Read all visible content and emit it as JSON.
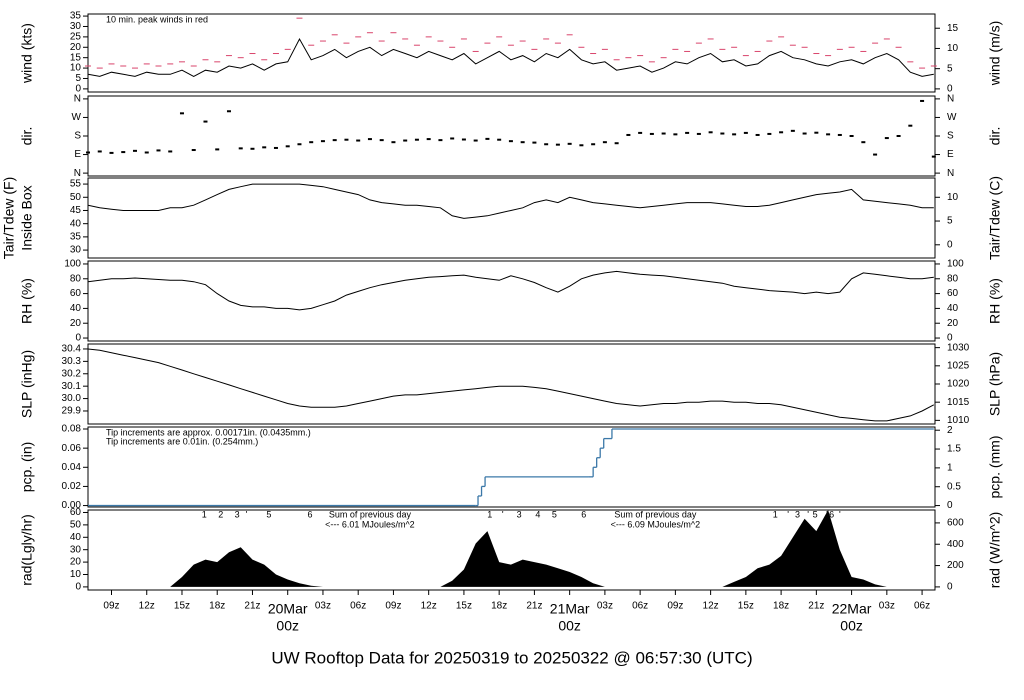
{
  "time_axis": {
    "xlim": [
      0,
      72.1
    ],
    "x": [
      0,
      1,
      2,
      3,
      4,
      5,
      6,
      7,
      8,
      9,
      10,
      11,
      12,
      13,
      14,
      15,
      16,
      17,
      18,
      19,
      20,
      21,
      22,
      23,
      24,
      25,
      26,
      27,
      28,
      29,
      30,
      31,
      32,
      33,
      34,
      35,
      36,
      37,
      38,
      39,
      40,
      41,
      42,
      43,
      44,
      45,
      46,
      47,
      48,
      49,
      50,
      51,
      52,
      53,
      54,
      55,
      56,
      57,
      58,
      59,
      60,
      61,
      62,
      63,
      64,
      65,
      66,
      67,
      68,
      69,
      70,
      71,
      72
    ],
    "xticks": [
      {
        "value": 2,
        "label": "09z"
      },
      {
        "value": 5,
        "label": "12z"
      },
      {
        "value": 8,
        "label": "15z"
      },
      {
        "value": 11,
        "label": "18z"
      },
      {
        "value": 14,
        "label": "21z"
      },
      {
        "value": 20,
        "label": "03z"
      },
      {
        "value": 23,
        "label": "06z"
      },
      {
        "value": 26,
        "label": "09z"
      },
      {
        "value": 29,
        "label": "12z"
      },
      {
        "value": 32,
        "label": "15z"
      },
      {
        "value": 35,
        "label": "18z"
      },
      {
        "value": 38,
        "label": "21z"
      },
      {
        "value": 44,
        "label": "03z"
      },
      {
        "value": 47,
        "label": "06z"
      },
      {
        "value": 50,
        "label": "09z"
      },
      {
        "value": 53,
        "label": "12z"
      },
      {
        "value": 56,
        "label": "15z"
      },
      {
        "value": 59,
        "label": "18z"
      },
      {
        "value": 62,
        "label": "21z"
      },
      {
        "value": 68,
        "label": "03z"
      },
      {
        "value": 71,
        "label": "06z"
      }
    ],
    "date_ticks": [
      {
        "value": 17,
        "label": "20Mar",
        "hour": "00z"
      },
      {
        "value": 41,
        "label": "21Mar",
        "hour": "00z"
      },
      {
        "value": 65,
        "label": "22Mar",
        "hour": "00z"
      }
    ],
    "date_color": "#d9446b",
    "title": "UW Rooftop Data for 20250319  to  20250322 @ 06:57:30  (UTC)",
    "title_color": "#2c8fd6"
  },
  "chart_data": [
    {
      "type": "line",
      "ylabel": "wind (kts)",
      "y2label": "wind (m/s)",
      "ylim": [
        -1.5,
        36
      ],
      "yticks": [
        0,
        5,
        10,
        15,
        20,
        25,
        30,
        35
      ],
      "y2lim": [
        -0.77,
        18.52
      ],
      "y2ticks": [
        0,
        5,
        10,
        15
      ],
      "notes": [
        {
          "text": "10 min. peak winds in red",
          "color": "#d9446b"
        }
      ],
      "series": [
        {
          "color": "#000000",
          "style": "line",
          "values": [
            7,
            6,
            8,
            7,
            6,
            8,
            7,
            7,
            9,
            6,
            9,
            8,
            11,
            10,
            12,
            9,
            12,
            13,
            24,
            14,
            16,
            19,
            15,
            18,
            20,
            16,
            19,
            17,
            15,
            18,
            16,
            14,
            17,
            12,
            15,
            18,
            14,
            16,
            13,
            17,
            15,
            19,
            14,
            12,
            13,
            9,
            10,
            11,
            8,
            10,
            13,
            12,
            15,
            17,
            13,
            14,
            11,
            12,
            16,
            18,
            15,
            14,
            12,
            11,
            13,
            14,
            12,
            15,
            17,
            14,
            8,
            6,
            7
          ]
        },
        {
          "color": "#d9446b",
          "style": "dash",
          "values": [
            11,
            10,
            12,
            11,
            10,
            12,
            11,
            12,
            13,
            11,
            14,
            13,
            16,
            15,
            17,
            14,
            17,
            19,
            34,
            21,
            23,
            26,
            22,
            25,
            27,
            23,
            27,
            24,
            21,
            25,
            23,
            20,
            24,
            18,
            22,
            25,
            21,
            23,
            19,
            24,
            22,
            26,
            20,
            17,
            19,
            14,
            15,
            16,
            13,
            15,
            19,
            18,
            22,
            24,
            19,
            20,
            16,
            18,
            23,
            25,
            21,
            20,
            17,
            16,
            19,
            20,
            18,
            22,
            24,
            20,
            13,
            10,
            11
          ]
        }
      ]
    },
    {
      "type": "scatter",
      "ylabel": "dir.",
      "y2label": "dir.",
      "ylim": [
        -14,
        374
      ],
      "yticks": [
        {
          "value": 0,
          "label": "N"
        },
        {
          "value": 90,
          "label": "E"
        },
        {
          "value": 180,
          "label": "S"
        },
        {
          "value": 270,
          "label": "W"
        },
        {
          "value": 360,
          "label": "N"
        }
      ],
      "y2lim": [
        -14,
        374
      ],
      "y2ticks": [
        {
          "value": 0,
          "label": "N"
        },
        {
          "value": 90,
          "label": "E"
        },
        {
          "value": 180,
          "label": "S"
        },
        {
          "value": 270,
          "label": "W"
        },
        {
          "value": 360,
          "label": "N"
        }
      ],
      "series": [
        {
          "color": "#000000",
          "values": [
            100,
            105,
            98,
            102,
            108,
            100,
            110,
            105,
            290,
            112,
            250,
            115,
            300,
            120,
            118,
            125,
            122,
            130,
            140,
            150,
            155,
            160,
            162,
            158,
            165,
            160,
            150,
            158,
            162,
            165,
            160,
            168,
            163,
            158,
            166,
            162,
            155,
            150,
            148,
            140,
            138,
            142,
            135,
            140,
            150,
            145,
            185,
            195,
            190,
            192,
            188,
            195,
            190,
            198,
            192,
            188,
            195,
            185,
            190,
            198,
            205,
            192,
            196,
            188,
            185,
            180,
            150,
            90,
            170,
            180,
            230,
            350,
            80
          ]
        }
      ]
    },
    {
      "type": "line",
      "ylabel": [
        "Tair/Tdew (F)",
        "Inside Box"
      ],
      "y2label": "Tair/Tdew (C)",
      "ylim": [
        27,
        57.3
      ],
      "yticks": [
        30,
        35,
        40,
        45,
        50,
        55
      ],
      "y2lim": [
        -2.78,
        14.06
      ],
      "y2ticks": [
        0,
        5,
        10
      ],
      "series": [
        {
          "color": "#000000",
          "style": "line",
          "values": [
            47,
            46,
            45.5,
            45,
            45,
            45,
            45,
            46,
            46,
            47,
            49,
            51,
            53,
            54,
            55,
            55,
            55,
            55,
            55,
            54.5,
            54,
            53,
            52,
            51,
            49,
            48,
            47.5,
            47,
            47,
            46.5,
            46,
            43,
            42,
            42.5,
            43,
            44,
            45,
            46,
            48,
            49,
            48,
            50,
            49,
            48,
            47.5,
            47,
            46.5,
            46,
            46.5,
            47,
            47.5,
            48,
            48,
            48,
            47.5,
            47,
            46.5,
            46.5,
            47,
            48,
            49,
            50,
            51,
            51.5,
            52,
            53,
            49,
            48.5,
            48,
            47.5,
            47,
            46,
            46
          ]
        }
      ]
    },
    {
      "type": "line",
      "ylabel": "RH (%)",
      "y2label": "RH (%)",
      "ylim": [
        -4,
        104
      ],
      "yticks": [
        0,
        20,
        40,
        60,
        80,
        100
      ],
      "y2lim": [
        -4,
        104
      ],
      "y2ticks": [
        0,
        20,
        40,
        60,
        80,
        100
      ],
      "series": [
        {
          "color": "#000000",
          "style": "line",
          "values": [
            76,
            78,
            80,
            80,
            81,
            80,
            79,
            78,
            78,
            76,
            72,
            60,
            50,
            44,
            42,
            42,
            40,
            40,
            38,
            40,
            45,
            50,
            58,
            63,
            68,
            72,
            75,
            78,
            80,
            82,
            83,
            84,
            85,
            82,
            80,
            78,
            84,
            80,
            75,
            68,
            62,
            70,
            80,
            85,
            88,
            90,
            88,
            86,
            85,
            84,
            82,
            80,
            78,
            76,
            74,
            70,
            68,
            66,
            64,
            63,
            62,
            60,
            62,
            60,
            62,
            80,
            88,
            86,
            84,
            82,
            80,
            80,
            82
          ]
        }
      ]
    },
    {
      "type": "line",
      "ylabel": "SLP (inHg)",
      "y2label": "SLP (hPa)",
      "ylim": [
        29.795,
        30.44
      ],
      "yticks": [
        29.9,
        {
          "value": 30,
          "label": "30.0"
        },
        30.1,
        30.2,
        30.3,
        30.4
      ],
      "y2lim": [
        1009,
        1031
      ],
      "y2ticks": [
        1010,
        1015,
        1020,
        1025,
        1030
      ],
      "series": [
        {
          "color": "#000000",
          "style": "line",
          "values": [
            30.4,
            30.39,
            30.37,
            30.35,
            30.33,
            30.31,
            30.29,
            30.26,
            30.23,
            30.2,
            30.17,
            30.14,
            30.11,
            30.08,
            30.05,
            30.02,
            29.99,
            29.96,
            29.94,
            29.93,
            29.93,
            29.93,
            29.94,
            29.96,
            29.98,
            30.0,
            30.02,
            30.03,
            30.03,
            30.04,
            30.05,
            30.06,
            30.07,
            30.08,
            30.09,
            30.1,
            30.1,
            30.1,
            30.09,
            30.08,
            30.06,
            30.04,
            30.02,
            30.0,
            29.98,
            29.96,
            29.95,
            29.94,
            29.95,
            29.96,
            29.96,
            29.97,
            29.97,
            29.98,
            29.98,
            29.97,
            29.97,
            29.96,
            29.96,
            29.95,
            29.93,
            29.91,
            29.89,
            29.87,
            29.85,
            29.84,
            29.83,
            29.82,
            29.82,
            29.84,
            29.86,
            29.9,
            29.95
          ]
        }
      ]
    },
    {
      "type": "step",
      "ylabel": "pcp. (in)",
      "y2label": "pcp. (mm)",
      "ylim": [
        -0.0015,
        0.0821
      ],
      "yticks": [
        {
          "value": 0,
          "label": "0.00"
        },
        {
          "value": 0.02,
          "label": "0.02"
        },
        {
          "value": 0.04,
          "label": "0.04"
        },
        {
          "value": 0.06,
          "label": "0.06"
        },
        {
          "value": 0.08,
          "label": "0.08"
        }
      ],
      "y2lim": [
        -0.038,
        2.085
      ],
      "y2ticks": [
        0,
        0.5,
        1,
        1.5,
        2
      ],
      "notes": [
        {
          "text": "Tip increments are approx. 0.00171in. (0.0435mm.)",
          "color": "#d9446b"
        },
        {
          "text": "Tip increments are 0.01in. (0.254mm.)",
          "color": "#2c8fd6"
        }
      ],
      "series": [
        {
          "color": "#3b78a8",
          "x": [
            0,
            33.0,
            33.2,
            33.5,
            33.8,
            42.6,
            43.0,
            43.3,
            43.6,
            43.9,
            44.6,
            72
          ],
          "values": [
            0,
            0,
            0.01,
            0.02,
            0.03,
            0.03,
            0.04,
            0.05,
            0.06,
            0.07,
            0.08,
            0.08
          ]
        }
      ]
    },
    {
      "type": "area",
      "ylabel": "rad(Lgly/hr)",
      "y2label": "rad (W/m^2)",
      "ylim": [
        -2.5,
        62
      ],
      "yticks": [
        0,
        10,
        20,
        30,
        40,
        50,
        60
      ],
      "y2lim": [
        -29,
        721
      ],
      "y2ticks": [
        0,
        200,
        400,
        600
      ],
      "series": [
        {
          "color": "#000000",
          "values": [
            0,
            0,
            0,
            0,
            0,
            0,
            0,
            0,
            8,
            18,
            22,
            20,
            28,
            32,
            22,
            18,
            10,
            6,
            3,
            1,
            0,
            0,
            0,
            0,
            0,
            0,
            0,
            0,
            0,
            0,
            0,
            5,
            14,
            35,
            45,
            20,
            18,
            22,
            20,
            18,
            15,
            12,
            8,
            3,
            0,
            0,
            0,
            0,
            0,
            0,
            0,
            0,
            0,
            0,
            0,
            4,
            8,
            15,
            18,
            25,
            40,
            55,
            45,
            62,
            30,
            8,
            6,
            2,
            0,
            0,
            0,
            0,
            0
          ]
        }
      ],
      "markers": {
        "color": "#9b30d9",
        "x": [
          9.9,
          11.3,
          12.7,
          13.5,
          15.4,
          18.9,
          34.2,
          35.3,
          36.7,
          38.3,
          39.7,
          42.2,
          58.5,
          59.6,
          60.4,
          61.3,
          61.9,
          62.9,
          63.3,
          64.0
        ],
        "labels": [
          "1",
          "2",
          "3",
          "'",
          "5",
          "6",
          "1",
          "'",
          "3",
          "4",
          "5",
          "6",
          "1",
          "'",
          "3",
          "'",
          "5",
          "'",
          "6",
          "'"
        ]
      },
      "sums": [
        {
          "x": 24.0,
          "lines": [
            "Sum of previous day",
            "<--- 6.01 MJoules/m^2"
          ]
        },
        {
          "x": 48.3,
          "lines": [
            "Sum of previous day",
            "<--- 6.09 MJoules/m^2"
          ]
        }
      ]
    }
  ]
}
